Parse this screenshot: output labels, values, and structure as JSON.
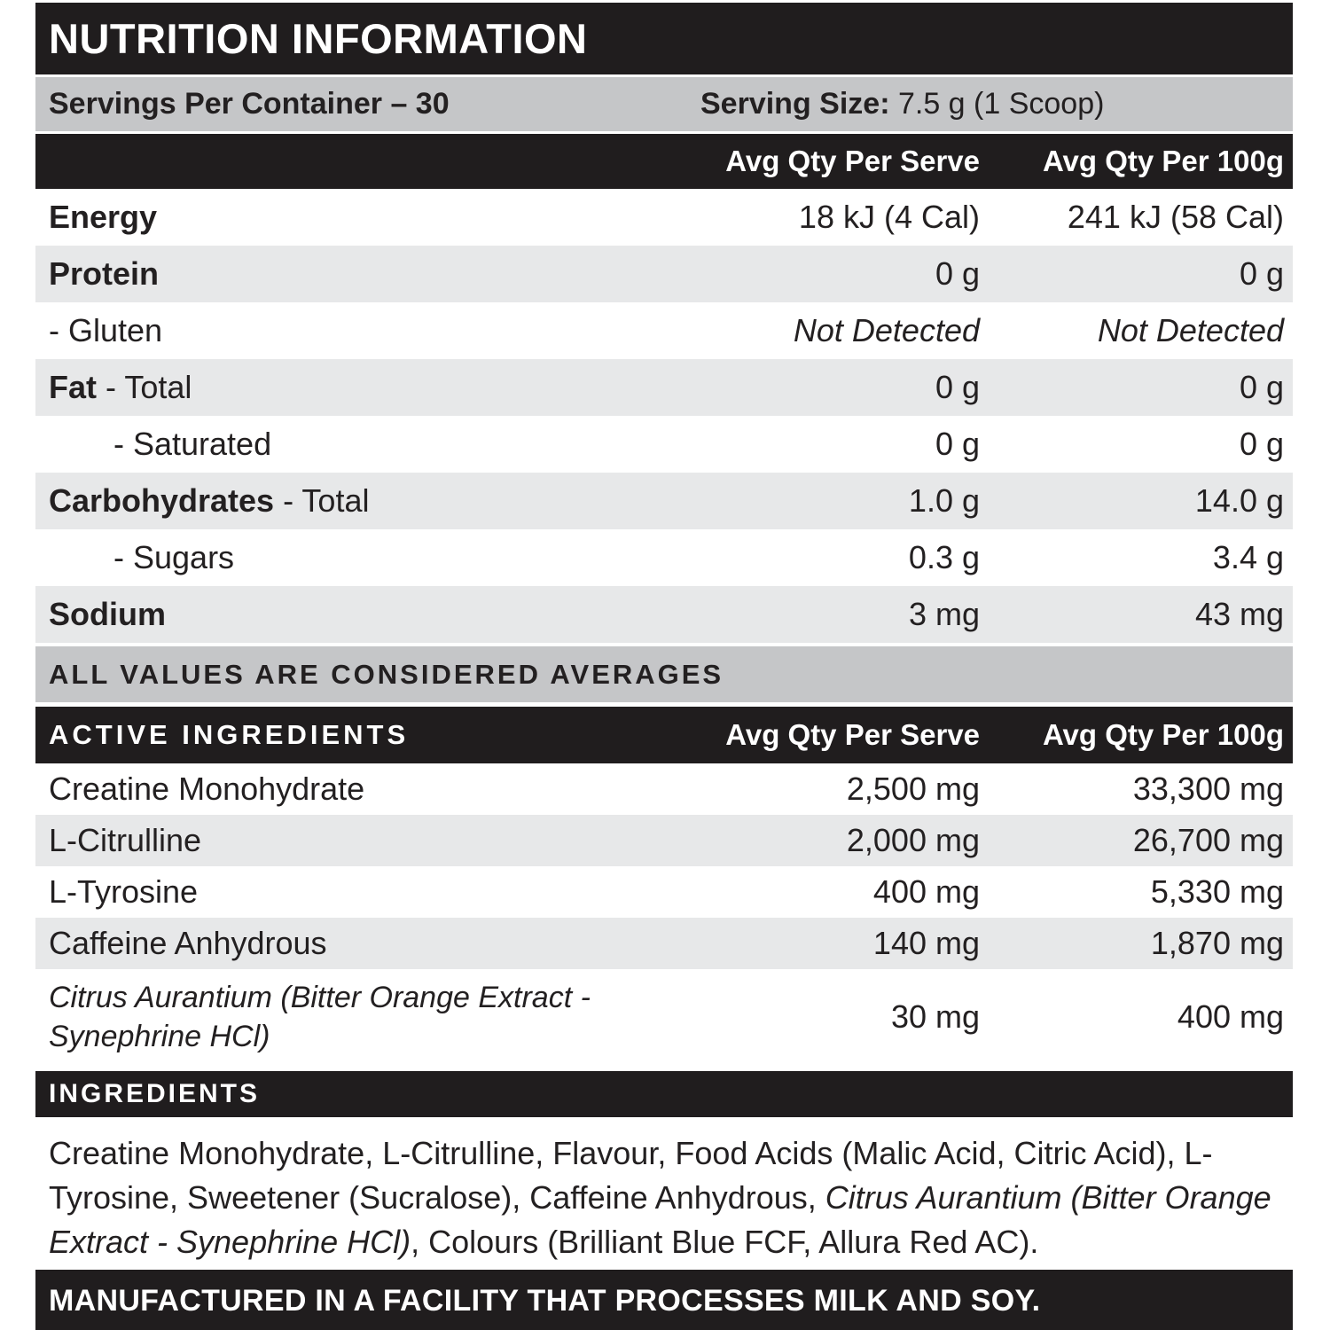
{
  "header": {
    "title": "NUTRITION INFORMATION"
  },
  "servings": {
    "per_container": "Servings Per Container – 30",
    "serving_size_label": "Serving Size:",
    "serving_size_value": " 7.5 g (1 Scoop)"
  },
  "columns": {
    "serve": "Avg Qty Per Serve",
    "per100g": "Avg Qty Per 100g"
  },
  "nutrition_rows": [
    {
      "label_bold": "Energy",
      "label_rest": "",
      "serve": "18 kJ (4 Cal)",
      "per100": "241 kJ (58 Cal)"
    },
    {
      "label_bold": "Protein",
      "label_rest": "",
      "serve": "0 g",
      "per100": "0 g"
    },
    {
      "label_bold": "",
      "label_rest": "- Gluten",
      "serve": "Not Detected",
      "per100": "Not Detected"
    },
    {
      "label_bold": "Fat",
      "label_rest": " - Total",
      "serve": "0 g",
      "per100": "0 g"
    },
    {
      "label_bold": "",
      "label_rest": "- Saturated",
      "serve": "0 g",
      "per100": "0 g"
    },
    {
      "label_bold": "Carbohydrates",
      "label_rest": " - Total",
      "serve": "1.0 g",
      "per100": "14.0 g"
    },
    {
      "label_bold": "",
      "label_rest": "- Sugars",
      "serve": "0.3 g",
      "per100": "3.4 g"
    },
    {
      "label_bold": "Sodium",
      "label_rest": "",
      "serve": "3 mg",
      "per100": "43 mg"
    }
  ],
  "averages_note": "ALL VALUES ARE CONSIDERED AVERAGES",
  "active": {
    "heading": "ACTIVE INGREDIENTS",
    "rows": [
      {
        "label": "Creatine Monohydrate",
        "serve": "2,500 mg",
        "per100": "33,300 mg"
      },
      {
        "label": "L-Citrulline",
        "serve": "2,000 mg",
        "per100": "26,700 mg"
      },
      {
        "label": "L-Tyrosine",
        "serve": "400 mg",
        "per100": "5,330 mg"
      },
      {
        "label": "Caffeine Anhydrous",
        "serve": "140 mg",
        "per100": "1,870 mg"
      },
      {
        "label": "Citrus Aurantium (Bitter Orange Extract - Synephrine HCl)",
        "serve": "30 mg",
        "per100": "400 mg"
      }
    ]
  },
  "ingredients": {
    "heading": "INGREDIENTS",
    "text_before": "Creatine Monohydrate, L-Citrulline, Flavour, Food Acids (Malic Acid, Citric Acid), L-Tyrosine, Sweetener (Sucralose), Caffeine Anhydrous, ",
    "text_italic": "Citrus Aurantium (Bitter Orange Extract - Synephrine HCl)",
    "text_after": ", Colours (Brilliant Blue FCF, Allura Red AC)."
  },
  "footer": {
    "text": "MANUFACTURED IN A FACILITY THAT PROCESSES MILK AND SOY."
  },
  "colors": {
    "black": "#201d1e",
    "silver": "#c5c6c8",
    "stripe": "#e7e8e9",
    "text": "#232021"
  }
}
